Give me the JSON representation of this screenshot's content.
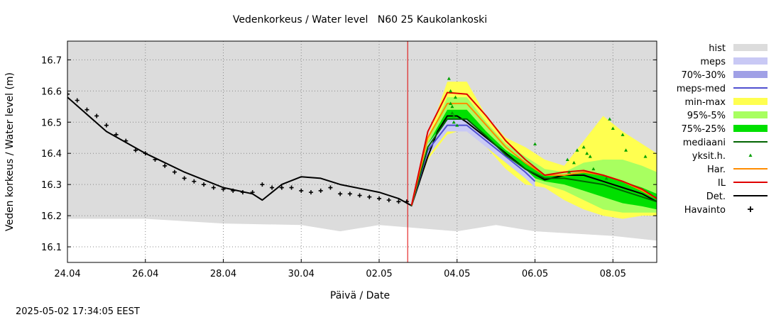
{
  "chart_data": {
    "type": "line",
    "title": "Vedenkorkeus / Water level   N60 25 Kaukolankoski",
    "xlabel": "Päivä / Date",
    "ylabel": "Veden korkeus / Water level (m)",
    "timestamp": "2025-05-02 17:34:05 EEST",
    "x_range": [
      "2025-04-24 00:00",
      "2025-05-09 03:00"
    ],
    "ylim": [
      16.05,
      16.76
    ],
    "x_ticks": [
      {
        "date": "2025-04-24",
        "label": "24.04"
      },
      {
        "date": "2025-04-26",
        "label": "26.04"
      },
      {
        "date": "2025-04-28",
        "label": "28.04"
      },
      {
        "date": "2025-04-30",
        "label": "30.04"
      },
      {
        "date": "2025-05-02",
        "label": "02.05"
      },
      {
        "date": "2025-05-04",
        "label": "04.05"
      },
      {
        "date": "2025-05-06",
        "label": "06.05"
      },
      {
        "date": "2025-05-08",
        "label": "08.05"
      }
    ],
    "y_ticks": [
      {
        "value": 16.1,
        "label": "16.1"
      },
      {
        "value": 16.2,
        "label": "16.2"
      },
      {
        "value": 16.3,
        "label": "16.3"
      },
      {
        "value": 16.4,
        "label": "16.4"
      },
      {
        "value": 16.5,
        "label": "16.5"
      },
      {
        "value": 16.6,
        "label": "16.6"
      },
      {
        "value": 16.7,
        "label": "16.7"
      }
    ],
    "grid": true,
    "legend_position": "right",
    "now": "2025-05-02 17:34",
    "colors": {
      "hist": "#dcdcdc",
      "meps": "#c9c9f5",
      "meps_band": "#a0a0e6",
      "meps_med": "#5050d0",
      "minmax": "#ffff50",
      "p95_5": "#a8ff60",
      "p75_25": "#00e000",
      "median": "#006400",
      "yksit": "#00a000",
      "har": "#ff8c00",
      "il": "#e00000",
      "det": "#000000",
      "havainto": "#000000",
      "now_line": "#e00000"
    },
    "legend": [
      {
        "key": "hist",
        "label": "hist",
        "kind": "box"
      },
      {
        "key": "meps",
        "label": "meps",
        "kind": "box"
      },
      {
        "key": "meps_band",
        "label": "70%-30%",
        "kind": "box"
      },
      {
        "key": "meps_med",
        "label": "meps-med",
        "kind": "line"
      },
      {
        "key": "minmax",
        "label": "min-max",
        "kind": "box"
      },
      {
        "key": "p95_5",
        "label": "95%-5%",
        "kind": "box"
      },
      {
        "key": "p75_25",
        "label": "75%-25%",
        "kind": "box"
      },
      {
        "key": "median",
        "label": "mediaani",
        "kind": "line"
      },
      {
        "key": "yksit",
        "label": "yksit.h.",
        "kind": "point"
      },
      {
        "key": "har",
        "label": "Har.",
        "kind": "line"
      },
      {
        "key": "il",
        "label": "IL",
        "kind": "line"
      },
      {
        "key": "det",
        "label": "Det.",
        "kind": "line"
      },
      {
        "key": "havainto",
        "label": "Havainto",
        "kind": "plus"
      }
    ],
    "hist_band": {
      "x": [
        "2025-04-24 00:00",
        "2025-04-26 00:00",
        "2025-04-28 00:00",
        "2025-04-30 00:00",
        "2025-05-01 00:00",
        "2025-05-02 00:00",
        "2025-05-04 00:00",
        "2025-05-05 00:00",
        "2025-05-06 00:00",
        "2025-05-08 00:00",
        "2025-05-09 03:00"
      ],
      "low": [
        16.19,
        16.19,
        16.175,
        16.17,
        16.15,
        16.17,
        16.15,
        16.17,
        16.15,
        16.135,
        16.12
      ],
      "high": [
        16.76,
        16.76,
        16.76,
        16.76,
        16.76,
        16.76,
        16.76,
        16.76,
        16.76,
        16.76,
        16.76
      ]
    },
    "minmax_band": {
      "x": [
        "2025-05-02 20:00",
        "2025-05-03 06:00",
        "2025-05-03 18:00",
        "2025-05-04 06:00",
        "2025-05-04 18:00",
        "2025-05-05 06:00",
        "2025-05-05 18:00",
        "2025-05-06 06:00",
        "2025-05-06 18:00",
        "2025-05-07 06:00",
        "2025-05-07 18:00",
        "2025-05-08 06:00",
        "2025-05-08 18:00",
        "2025-05-09 03:00"
      ],
      "high": [
        16.24,
        16.45,
        16.63,
        16.63,
        16.52,
        16.45,
        16.42,
        16.38,
        16.36,
        16.44,
        16.52,
        16.47,
        16.43,
        16.4
      ],
      "low": [
        16.23,
        16.38,
        16.46,
        16.48,
        16.42,
        16.35,
        16.3,
        16.29,
        16.25,
        16.22,
        16.2,
        16.19,
        16.2,
        16.2
      ]
    },
    "p95_5_band": {
      "x": [
        "2025-05-02 20:00",
        "2025-05-03 06:00",
        "2025-05-03 18:00",
        "2025-05-04 06:00",
        "2025-05-04 18:00",
        "2025-05-05 06:00",
        "2025-05-05 18:00",
        "2025-05-06 06:00",
        "2025-05-06 18:00",
        "2025-05-07 06:00",
        "2025-05-07 18:00",
        "2025-05-08 06:00",
        "2025-05-08 18:00",
        "2025-05-09 03:00"
      ],
      "high": [
        16.235,
        16.44,
        16.58,
        16.58,
        16.5,
        16.43,
        16.39,
        16.35,
        16.34,
        16.37,
        16.38,
        16.38,
        16.36,
        16.34
      ],
      "low": [
        16.232,
        16.4,
        16.48,
        16.49,
        16.43,
        16.37,
        16.32,
        16.3,
        16.28,
        16.25,
        16.22,
        16.21,
        16.21,
        16.21
      ]
    },
    "p75_25_band": {
      "x": [
        "2025-05-02 20:00",
        "2025-05-03 06:00",
        "2025-05-03 18:00",
        "2025-05-04 06:00",
        "2025-05-04 18:00",
        "2025-05-05 06:00",
        "2025-05-05 18:00",
        "2025-05-06 06:00",
        "2025-05-06 18:00",
        "2025-05-07 06:00",
        "2025-05-07 18:00",
        "2025-05-08 06:00",
        "2025-05-08 18:00",
        "2025-05-09 03:00"
      ],
      "high": [
        16.233,
        16.43,
        16.54,
        16.54,
        16.47,
        16.41,
        16.37,
        16.33,
        16.33,
        16.34,
        16.33,
        16.31,
        16.29,
        16.27
      ],
      "low": [
        16.232,
        16.41,
        16.5,
        16.5,
        16.44,
        16.38,
        16.33,
        16.31,
        16.3,
        16.28,
        16.26,
        16.24,
        16.23,
        16.22
      ]
    },
    "meps_band": {
      "x": [
        "2025-05-02 20:00",
        "2025-05-03 06:00",
        "2025-05-03 18:00",
        "2025-05-04 06:00",
        "2025-05-04 18:00",
        "2025-05-05 06:00",
        "2025-05-05 18:00",
        "2025-05-06 00:00"
      ],
      "high": [
        16.233,
        16.43,
        16.51,
        16.51,
        16.45,
        16.4,
        16.35,
        16.32
      ],
      "low": [
        16.231,
        16.39,
        16.47,
        16.47,
        16.42,
        16.37,
        16.32,
        16.29
      ]
    },
    "series": [
      {
        "name": "Havainto",
        "key": "havainto",
        "style": "plus",
        "x": [
          "2025-04-24 00:00",
          "2025-04-24 06:00",
          "2025-04-24 12:00",
          "2025-04-24 18:00",
          "2025-04-25 00:00",
          "2025-04-25 06:00",
          "2025-04-25 12:00",
          "2025-04-25 18:00",
          "2025-04-26 00:00",
          "2025-04-26 06:00",
          "2025-04-26 12:00",
          "2025-04-26 18:00",
          "2025-04-27 00:00",
          "2025-04-27 06:00",
          "2025-04-27 12:00",
          "2025-04-27 18:00",
          "2025-04-28 00:00",
          "2025-04-28 06:00",
          "2025-04-28 12:00",
          "2025-04-28 18:00",
          "2025-04-29 00:00",
          "2025-04-29 06:00",
          "2025-04-29 12:00",
          "2025-04-29 18:00",
          "2025-04-30 00:00",
          "2025-04-30 06:00",
          "2025-04-30 12:00",
          "2025-04-30 18:00",
          "2025-05-01 00:00",
          "2025-05-01 06:00",
          "2025-05-01 12:00",
          "2025-05-01 18:00",
          "2025-05-02 00:00",
          "2025-05-02 06:00",
          "2025-05-02 12:00",
          "2025-05-02 17:00"
        ],
        "y": [
          16.59,
          16.57,
          16.54,
          16.52,
          16.49,
          16.46,
          16.44,
          16.41,
          16.4,
          16.38,
          16.36,
          16.34,
          16.32,
          16.31,
          16.3,
          16.29,
          16.285,
          16.28,
          16.275,
          16.275,
          16.3,
          16.29,
          16.29,
          16.29,
          16.28,
          16.275,
          16.28,
          16.29,
          16.27,
          16.27,
          16.265,
          16.26,
          16.255,
          16.25,
          16.245,
          16.245
        ]
      },
      {
        "name": "Det.",
        "key": "det",
        "style": "line",
        "width": 2,
        "x": [
          "2025-04-24 00:00",
          "2025-04-25 00:00",
          "2025-04-26 00:00",
          "2025-04-27 00:00",
          "2025-04-28 00:00",
          "2025-04-28 18:00",
          "2025-04-29 00:00",
          "2025-04-29 12:00",
          "2025-04-30 00:00",
          "2025-04-30 12:00",
          "2025-05-01 00:00",
          "2025-05-02 00:00",
          "2025-05-02 12:00",
          "2025-05-02 20:00",
          "2025-05-03 06:00",
          "2025-05-03 12:00",
          "2025-05-03 18:00",
          "2025-05-04 00:00",
          "2025-05-04 06:00",
          "2025-05-04 18:00",
          "2025-05-05 06:00",
          "2025-05-05 18:00",
          "2025-05-06 06:00",
          "2025-05-06 18:00",
          "2025-05-07 06:00",
          "2025-05-07 18:00",
          "2025-05-08 06:00",
          "2025-05-08 18:00",
          "2025-05-09 03:00"
        ],
        "y": [
          16.58,
          16.47,
          16.4,
          16.34,
          16.29,
          16.27,
          16.25,
          16.3,
          16.325,
          16.32,
          16.3,
          16.275,
          16.255,
          16.232,
          16.39,
          16.47,
          16.52,
          16.52,
          16.5,
          16.45,
          16.4,
          16.35,
          16.315,
          16.33,
          16.33,
          16.31,
          16.29,
          16.27,
          16.245
        ]
      },
      {
        "name": "meps-med",
        "key": "meps_med",
        "style": "line",
        "width": 2,
        "x": [
          "2025-05-02 20:00",
          "2025-05-03 06:00",
          "2025-05-03 18:00",
          "2025-05-04 06:00",
          "2025-05-04 18:00",
          "2025-05-05 06:00",
          "2025-05-05 18:00",
          "2025-05-06 00:00"
        ],
        "y": [
          16.232,
          16.41,
          16.49,
          16.49,
          16.44,
          16.39,
          16.34,
          16.31
        ]
      },
      {
        "name": "mediaani",
        "key": "median",
        "style": "line",
        "width": 2,
        "x": [
          "2025-05-02 20:00",
          "2025-05-03 06:00",
          "2025-05-03 18:00",
          "2025-05-04 06:00",
          "2025-05-04 18:00",
          "2025-05-05 06:00",
          "2025-05-05 18:00",
          "2025-05-06 06:00",
          "2025-05-06 18:00",
          "2025-05-07 06:00",
          "2025-05-07 18:00",
          "2025-05-08 06:00",
          "2025-05-08 18:00",
          "2025-05-09 03:00"
        ],
        "y": [
          16.232,
          16.42,
          16.51,
          16.51,
          16.455,
          16.395,
          16.35,
          16.32,
          16.32,
          16.31,
          16.3,
          16.28,
          16.26,
          16.245
        ]
      },
      {
        "name": "Har.",
        "key": "har",
        "style": "line",
        "width": 2,
        "x": [
          "2025-05-02 20:00",
          "2025-05-03 06:00",
          "2025-05-03 18:00",
          "2025-05-04 06:00",
          "2025-05-04 18:00",
          "2025-05-05 06:00",
          "2025-05-05 18:00",
          "2025-05-06 06:00",
          "2025-05-06 18:00",
          "2025-05-07 06:00",
          "2025-05-07 18:00",
          "2025-05-08 06:00",
          "2025-05-08 18:00",
          "2025-05-09 03:00"
        ],
        "y": [
          16.233,
          16.45,
          16.56,
          16.56,
          16.49,
          16.42,
          16.37,
          16.33,
          16.33,
          16.34,
          16.33,
          16.31,
          16.28,
          16.255
        ]
      },
      {
        "name": "IL",
        "key": "il",
        "style": "line",
        "width": 2,
        "x": [
          "2025-05-02 20:00",
          "2025-05-03 06:00",
          "2025-05-03 18:00",
          "2025-05-04 06:00",
          "2025-05-04 18:00",
          "2025-05-05 06:00",
          "2025-05-05 18:00",
          "2025-05-06 06:00",
          "2025-05-06 18:00",
          "2025-05-07 06:00",
          "2025-05-07 18:00",
          "2025-05-08 06:00",
          "2025-05-08 18:00",
          "2025-05-09 03:00"
        ],
        "y": [
          16.234,
          16.47,
          16.595,
          16.59,
          16.52,
          16.44,
          16.38,
          16.33,
          16.34,
          16.345,
          16.33,
          16.31,
          16.285,
          16.255
        ]
      },
      {
        "name": "yksit.h.",
        "key": "yksit",
        "style": "point",
        "x": [
          "2025-05-03 19:00",
          "2025-05-03 20:00",
          "2025-05-03 21:00",
          "2025-05-03 21:00",
          "2025-05-03 22:00",
          "2025-05-03 22:00",
          "2025-05-03 23:00",
          "2025-05-04 00:00",
          "2025-05-03 20:00",
          "2025-05-06 00:00",
          "2025-05-06 20:00",
          "2025-05-06 21:00",
          "2025-05-07 00:00",
          "2025-05-07 02:00",
          "2025-05-07 06:00",
          "2025-05-07 08:00",
          "2025-05-07 10:00",
          "2025-05-07 12:00",
          "2025-05-07 20:00",
          "2025-05-07 22:00",
          "2025-05-08 00:00",
          "2025-05-08 06:00",
          "2025-05-08 08:00",
          "2025-05-08 20:00"
        ],
        "y": [
          16.64,
          16.56,
          16.55,
          16.53,
          16.52,
          16.5,
          16.58,
          16.49,
          16.6,
          16.43,
          16.38,
          16.34,
          16.37,
          16.41,
          16.42,
          16.4,
          16.39,
          16.35,
          16.32,
          16.51,
          16.48,
          16.46,
          16.41,
          16.39
        ]
      }
    ]
  }
}
